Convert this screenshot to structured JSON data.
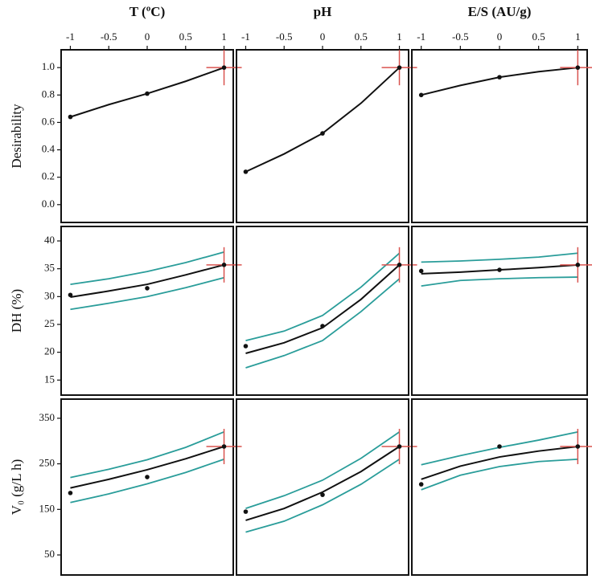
{
  "chart_data": [
    {
      "type": "line",
      "title": "T (ºC)",
      "ylabel": "Desirability",
      "xlim": [
        -1.12,
        1.12
      ],
      "xticks": [
        -1,
        -0.5,
        0,
        0.5,
        1
      ],
      "ylim": [
        -0.13,
        1.13
      ],
      "yticks": [
        {
          "value": 0,
          "label": "0.0"
        },
        0.2,
        0.4,
        0.6,
        0.8,
        {
          "value": 1,
          "label": "1.0"
        }
      ],
      "x": [
        -1,
        -0.5,
        0,
        0.5,
        1
      ],
      "series": [
        {
          "color": "#111111",
          "values": [
            0.64,
            0.73,
            0.81,
            0.9,
            1.0
          ]
        }
      ],
      "points": {
        "x": [
          -1,
          0,
          1
        ],
        "values": [
          0.64,
          0.81,
          1.0
        ]
      },
      "optimum": {
        "x": 1,
        "y": 1.0,
        "color": "#d9534f"
      }
    },
    {
      "type": "line",
      "title": "pH",
      "xlim": [
        -1.12,
        1.12
      ],
      "xticks": [
        -1,
        -0.5,
        0,
        0.5,
        1
      ],
      "ylim": [
        -0.13,
        1.13
      ],
      "x": [
        -1,
        -0.5,
        0,
        0.5,
        1
      ],
      "series": [
        {
          "color": "#111111",
          "values": [
            0.24,
            0.37,
            0.52,
            0.74,
            1.0
          ]
        }
      ],
      "points": {
        "x": [
          -1,
          0,
          1
        ],
        "values": [
          0.24,
          0.52,
          1.0
        ]
      },
      "optimum": {
        "x": 1,
        "y": 1.0,
        "color": "#d9534f"
      }
    },
    {
      "type": "line",
      "title": "E/S (AU/g)",
      "xlim": [
        -1.12,
        1.12
      ],
      "xticks": [
        -1,
        -0.5,
        0,
        0.5,
        1
      ],
      "ylim": [
        -0.13,
        1.13
      ],
      "x": [
        -1,
        -0.5,
        0,
        0.5,
        1
      ],
      "series": [
        {
          "color": "#111111",
          "values": [
            0.8,
            0.87,
            0.93,
            0.97,
            1.0
          ]
        }
      ],
      "points": {
        "x": [
          -1,
          0,
          1
        ],
        "values": [
          0.8,
          0.93,
          1.0
        ]
      },
      "optimum": {
        "x": 1,
        "y": 1.0,
        "color": "#d9534f"
      }
    },
    {
      "type": "line",
      "ylabel": "DH (%)",
      "xlim": [
        -1.12,
        1.12
      ],
      "ylim": [
        12.3,
        42.6
      ],
      "yticks": [
        15,
        20,
        25,
        30,
        35,
        40
      ],
      "x": [
        -1,
        -0.5,
        0,
        0.5,
        1
      ],
      "series": [
        {
          "color": "#2a9d9a",
          "values": [
            32.2,
            33.2,
            34.5,
            36.1,
            38.0
          ]
        },
        {
          "color": "#2a9d9a",
          "values": [
            27.7,
            28.8,
            30.0,
            31.6,
            33.4
          ]
        },
        {
          "color": "#111111",
          "values": [
            29.9,
            31.0,
            32.2,
            33.9,
            35.7
          ]
        }
      ],
      "points": {
        "x": [
          -1,
          0,
          1
        ],
        "values": [
          30.3,
          31.5,
          35.7
        ]
      },
      "optimum": {
        "x": 1,
        "y": 35.7,
        "color": "#d9534f"
      }
    },
    {
      "type": "line",
      "xlim": [
        -1.12,
        1.12
      ],
      "ylim": [
        12.3,
        42.6
      ],
      "x": [
        -1,
        -0.5,
        0,
        0.5,
        1
      ],
      "series": [
        {
          "color": "#2a9d9a",
          "values": [
            22.1,
            23.8,
            26.6,
            31.7,
            37.8
          ]
        },
        {
          "color": "#2a9d9a",
          "values": [
            17.2,
            19.4,
            22.1,
            27.3,
            33.2
          ]
        },
        {
          "color": "#111111",
          "values": [
            19.8,
            21.7,
            24.4,
            29.5,
            35.7
          ]
        }
      ],
      "points": {
        "x": [
          -1,
          0,
          1
        ],
        "values": [
          21.1,
          24.7,
          35.7
        ]
      },
      "optimum": {
        "x": 1,
        "y": 35.7,
        "color": "#d9534f"
      }
    },
    {
      "type": "line",
      "xlim": [
        -1.12,
        1.12
      ],
      "ylim": [
        12.3,
        42.6
      ],
      "x": [
        -1,
        -0.5,
        0,
        0.5,
        1
      ],
      "series": [
        {
          "color": "#2a9d9a",
          "values": [
            36.2,
            36.4,
            36.7,
            37.1,
            37.8
          ]
        },
        {
          "color": "#2a9d9a",
          "values": [
            31.9,
            32.9,
            33.2,
            33.4,
            33.5
          ]
        },
        {
          "color": "#111111",
          "values": [
            34.1,
            34.4,
            34.8,
            35.2,
            35.7
          ]
        }
      ],
      "points": {
        "x": [
          -1,
          0,
          1
        ],
        "values": [
          34.6,
          34.8,
          35.7
        ]
      },
      "optimum": {
        "x": 1,
        "y": 35.7,
        "color": "#d9534f"
      }
    },
    {
      "type": "line",
      "ylabel": "V₀ (g/L h)",
      "xlim": [
        -1.12,
        1.12
      ],
      "ylim": [
        6,
        392
      ],
      "yticks": [
        50,
        150,
        250,
        350
      ],
      "x": [
        -1,
        -0.5,
        0,
        0.5,
        1
      ],
      "series": [
        {
          "color": "#2a9d9a",
          "values": [
            220,
            238,
            259,
            286,
            320
          ]
        },
        {
          "color": "#2a9d9a",
          "values": [
            165,
            184,
            206,
            231,
            260
          ]
        },
        {
          "color": "#111111",
          "values": [
            197,
            216,
            237,
            261,
            288
          ]
        }
      ],
      "points": {
        "x": [
          -1,
          0,
          1
        ],
        "values": [
          186,
          221,
          288
        ]
      },
      "optimum": {
        "x": 1,
        "y": 288,
        "color": "#d9534f"
      }
    },
    {
      "type": "line",
      "xlim": [
        -1.12,
        1.12
      ],
      "ylim": [
        6,
        392
      ],
      "x": [
        -1,
        -0.5,
        0,
        0.5,
        1
      ],
      "series": [
        {
          "color": "#2a9d9a",
          "values": [
            152,
            180,
            214,
            262,
            320
          ]
        },
        {
          "color": "#2a9d9a",
          "values": [
            100,
            124,
            160,
            205,
            260
          ]
        },
        {
          "color": "#111111",
          "values": [
            126,
            152,
            188,
            233,
            288
          ]
        }
      ],
      "points": {
        "x": [
          -1,
          0,
          1
        ],
        "values": [
          145,
          182,
          288
        ]
      },
      "optimum": {
        "x": 1,
        "y": 288,
        "color": "#d9534f"
      }
    },
    {
      "type": "line",
      "xlim": [
        -1.12,
        1.12
      ],
      "ylim": [
        6,
        392
      ],
      "x": [
        -1,
        -0.5,
        0,
        0.5,
        1
      ],
      "series": [
        {
          "color": "#2a9d9a",
          "values": [
            248,
            268,
            286,
            302,
            320
          ]
        },
        {
          "color": "#2a9d9a",
          "values": [
            193,
            225,
            244,
            255,
            260
          ]
        },
        {
          "color": "#111111",
          "values": [
            216,
            245,
            265,
            278,
            288
          ]
        }
      ],
      "points": {
        "x": [
          -1,
          0,
          1
        ],
        "values": [
          205,
          288,
          288
        ]
      },
      "optimum": {
        "x": 1,
        "y": 288,
        "color": "#d9534f"
      }
    }
  ]
}
